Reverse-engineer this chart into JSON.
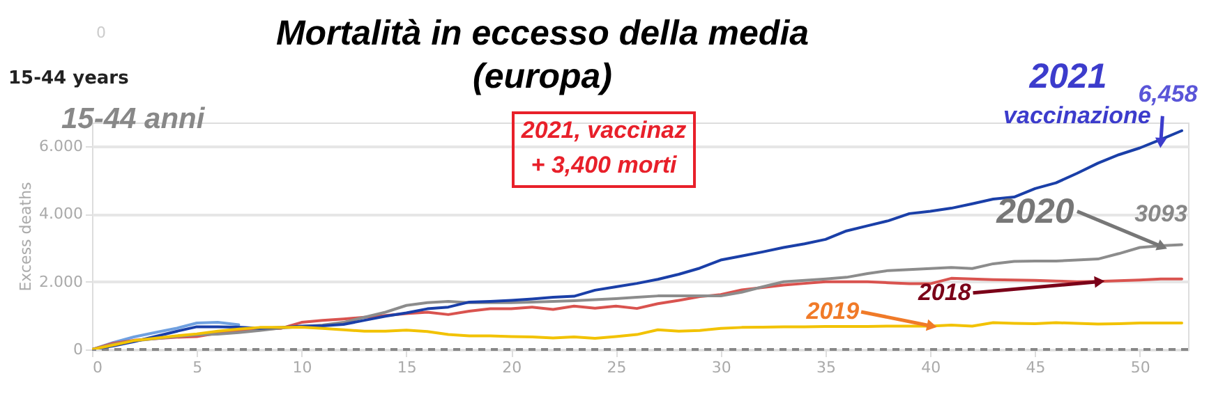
{
  "chart_data": {
    "type": "line",
    "title": "Mortalità in eccesso della media\n(europa)",
    "ylabel": "Excess deaths",
    "x": [
      0,
      1,
      2,
      3,
      4,
      5,
      6,
      7,
      8,
      9,
      10,
      11,
      12,
      13,
      14,
      15,
      16,
      17,
      18,
      19,
      20,
      21,
      22,
      23,
      24,
      25,
      26,
      27,
      28,
      29,
      30,
      31,
      32,
      33,
      34,
      35,
      36,
      37,
      38,
      39,
      40,
      41,
      42,
      43,
      44,
      45,
      46,
      47,
      48,
      49,
      50,
      51,
      52
    ],
    "series": [
      {
        "color": "#6fa0e0",
        "x": [
          0,
          1,
          2,
          3,
          4,
          5,
          6,
          7
        ],
        "values": [
          0,
          200,
          370,
          500,
          620,
          780,
          800,
          730
        ]
      },
      {
        "color": "#d9534f",
        "values": [
          0,
          180,
          270,
          320,
          360,
          380,
          480,
          550,
          600,
          620,
          800,
          860,
          900,
          950,
          1000,
          1060,
          1100,
          1030,
          1130,
          1200,
          1200,
          1250,
          1180,
          1280,
          1220,
          1280,
          1210,
          1350,
          1450,
          1560,
          1620,
          1760,
          1830,
          1900,
          1950,
          2000,
          2000,
          2000,
          1970,
          1940,
          1940,
          2100,
          2080,
          2060,
          2050,
          2040,
          2020,
          2000,
          2010,
          2030,
          2050,
          2080,
          2080
        ]
      },
      {
        "color": "#8c8c8c",
        "values": [
          0,
          150,
          250,
          320,
          380,
          430,
          450,
          500,
          560,
          630,
          680,
          720,
          800,
          950,
          1100,
          1300,
          1380,
          1420,
          1380,
          1380,
          1380,
          1400,
          1420,
          1440,
          1470,
          1500,
          1540,
          1580,
          1580,
          1580,
          1580,
          1690,
          1850,
          2000,
          2040,
          2080,
          2130,
          2240,
          2330,
          2360,
          2390,
          2420,
          2390,
          2530,
          2600,
          2610,
          2610,
          2640,
          2670,
          2830,
          3010,
          3060,
          3093
        ]
      },
      {
        "color": "#1a3fa8",
        "values": [
          0,
          100,
          230,
          380,
          530,
          670,
          670,
          660,
          620,
          650,
          690,
          700,
          740,
          860,
          980,
          1080,
          1200,
          1250,
          1400,
          1420,
          1450,
          1490,
          1540,
          1570,
          1750,
          1850,
          1950,
          2070,
          2220,
          2400,
          2640,
          2760,
          2880,
          3010,
          3120,
          3250,
          3500,
          3650,
          3800,
          4010,
          4080,
          4170,
          4300,
          4440,
          4500,
          4750,
          4920,
          5200,
          5500,
          5750,
          5950,
          6200,
          6458
        ]
      },
      {
        "color": "#f2c200",
        "values": [
          0,
          130,
          260,
          330,
          400,
          460,
          540,
          600,
          650,
          650,
          660,
          620,
          580,
          540,
          540,
          570,
          530,
          440,
          400,
          400,
          380,
          370,
          340,
          370,
          330,
          380,
          440,
          580,
          540,
          560,
          620,
          650,
          660,
          670,
          670,
          680,
          680,
          680,
          690,
          690,
          690,
          720,
          690,
          790,
          770,
          760,
          790,
          770,
          750,
          760,
          780,
          780,
          780
        ]
      }
    ],
    "xlim": [
      0,
      52.3
    ],
    "xticks": [
      0,
      5,
      10,
      15,
      20,
      25,
      30,
      35,
      40,
      45,
      50
    ],
    "ylim": [
      0,
      6700
    ],
    "yticks": [
      {
        "value": 0,
        "label": "0"
      },
      {
        "value": 2000,
        "label": "2.000"
      },
      {
        "value": 4000,
        "label": "4.000"
      },
      {
        "value": 6000,
        "label": "6.000"
      }
    ],
    "grid": "y",
    "legend": false,
    "marker": "none",
    "line_style": "solid",
    "ref_lines": [
      {
        "axis": "y",
        "value": 0,
        "color": "#888888",
        "line_style": "dashed"
      }
    ],
    "annotations": [
      "0",
      "15-44 years",
      "15-44 anni",
      "2021,  vaccinaz\n+ 3,400 morti",
      "2021",
      {
        "text": "vaccinazione",
        "x": 51,
        "y": 6150
      },
      {
        "text": "6,458",
        "x": 52,
        "y": 6458
      },
      {
        "text": "2020",
        "x": 51,
        "y": 3050
      },
      {
        "text": "3093",
        "x": 52,
        "y": 3093
      },
      {
        "text": "2019",
        "x": 40,
        "y": 700
      },
      {
        "text": "2018",
        "x": 48,
        "y": 2000
      }
    ]
  }
}
